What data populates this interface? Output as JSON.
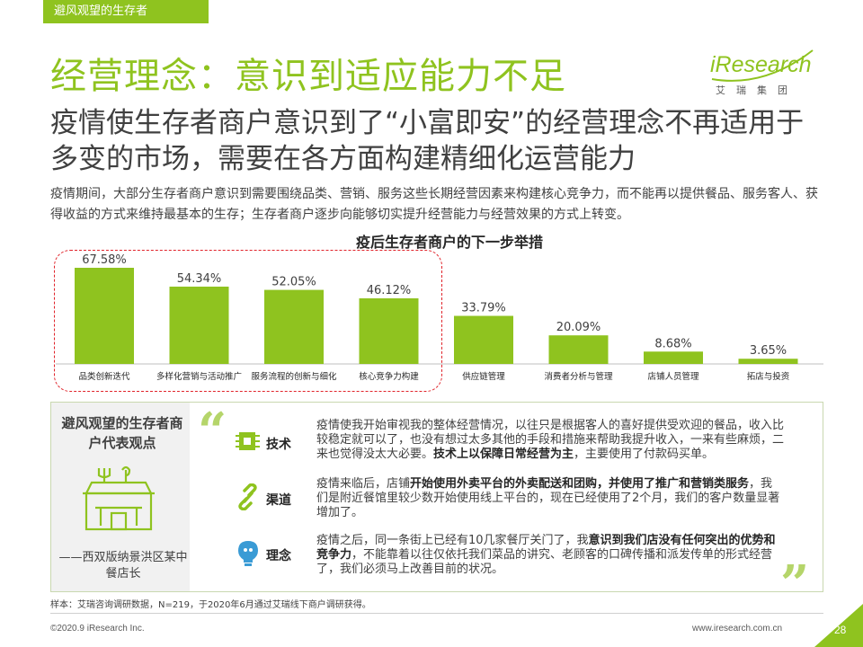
{
  "section_tab": "避风观望的生存者",
  "title": "经营理念：意识到适应能力不足",
  "logo": {
    "main": "iResearch",
    "sub": "艾瑞集团"
  },
  "subtitle": "疫情使生存者商户意识到了“小富即安”的经营理念不再适用于多变的市场，需要在各方面构建精细化运营能力",
  "intro": "疫情期间，大部分生存者商户意识到需要围绕品类、营销、服务这些长期经营因素来构建核心竞争力，而不能再以提供餐品、服务客人、获得收益的方式来维持最基本的生存；生存者商户逐步向能够切实提升经营能力与经营效果的方式上转变。",
  "chart_data": {
    "type": "bar",
    "title": "疫后生存者商户的下一步举措",
    "categories": [
      "品类创新迭代",
      "多样化营销与活动推广",
      "服务流程的创新与细化",
      "核心竞争力构建",
      "供应链管理",
      "消费者分析与管理",
      "店铺人员管理",
      "拓店与投资"
    ],
    "values": [
      67.58,
      54.34,
      52.05,
      46.12,
      33.79,
      20.09,
      8.68,
      3.65
    ],
    "value_labels": [
      "67.58%",
      "54.34%",
      "52.05%",
      "46.12%",
      "33.79%",
      "20.09%",
      "8.68%",
      "3.65%"
    ],
    "ylim": [
      0,
      75
    ],
    "highlighted_count": 4,
    "bar_color": "#8fc31f",
    "highlight_color": "#e0232a"
  },
  "panel": {
    "heading": "避风观望的生存者商户代表观点",
    "source": "——西双版纳景洪区某中餐店长",
    "topics": [
      {
        "label": "技术",
        "icon": "chip-icon",
        "quote_a": "疫情使我开始审视我的整体经营情况，以往只是根据客人的喜好提供受欢迎的餐品，收入比较稳定就可以了，也没有想过太多其他的手段和措施来帮助我提升收入，一来有些麻烦，二来也觉得没太大必要。",
        "quote_b": "技术上以保障日常经营为主",
        "quote_c": "，主要使用了付款码买单。"
      },
      {
        "label": "渠道",
        "icon": "link-icon",
        "quote_a": "疫情来临后，店铺",
        "quote_b": "开始使用外卖平台的外卖配送和团购，并使用了推广和营销类服务",
        "quote_c": "，我们是附近餐馆里较少数开始使用线上平台的，现在已经使用了2个月，我们的客户数量显著增加了。"
      },
      {
        "label": "理念",
        "icon": "lightbulb-icon",
        "quote_a": "疫情之后，同一条街上已经有10几家餐厅关门了，我",
        "quote_b": "意识到我们店没有任何突出的优势和竞争力",
        "quote_c": "，不能靠着以往仅依托我们菜品的讲究、老顾客的口碑传播和派发传单的形式经营了，我们必须马上改善目前的状况。"
      }
    ]
  },
  "sample_note": "样本：艾瑞咨询调研数据，N=219，于2020年6月通过艾瑞线下商户调研获得。",
  "footer": {
    "copyright": "©2020.9 iResearch Inc.",
    "website": "www.iresearch.com.cn",
    "page": "28"
  },
  "colors": {
    "brand_green": "#8fc31f",
    "accent_red": "#e0232a",
    "quote_green": "#b5d56a"
  }
}
